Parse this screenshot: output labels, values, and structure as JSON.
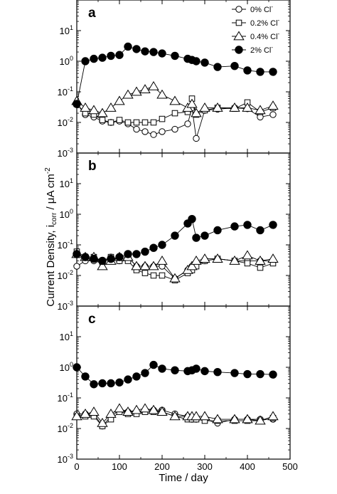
{
  "figure": {
    "ylabel_main": "Current Density, i",
    "ylabel_sub": "corr",
    "ylabel_unit": " / μA cm",
    "ylabel_exp": "-2",
    "xlabel": "Time / day"
  },
  "chart_data": {
    "type": "line",
    "x_range": [
      0,
      500
    ],
    "x_ticks": [
      0,
      100,
      200,
      300,
      400,
      500
    ],
    "y_scale": "log",
    "y_range": [
      0.001,
      100
    ],
    "y_tick_labels": [
      {
        "base": "10",
        "exp": "1"
      },
      {
        "base": "10",
        "exp": "0"
      },
      {
        "base": "10",
        "exp": "-1"
      },
      {
        "base": "10",
        "exp": "-2"
      },
      {
        "base": "10",
        "exp": "-3"
      }
    ],
    "legend": {
      "placement": "top-right",
      "entries": [
        {
          "series": 0,
          "text": "0% Cl",
          "sup": "-"
        },
        {
          "series": 1,
          "text": "0.2% Cl",
          "sup": "-"
        },
        {
          "series": 2,
          "text": "0.4% Cl",
          "sup": "-"
        },
        {
          "series": 3,
          "text": "2% Cl",
          "sup": "-"
        }
      ]
    },
    "series_styles": [
      {
        "marker": "circle",
        "fill": "#ffffff",
        "size": "small"
      },
      {
        "marker": "square",
        "fill": "#ffffff",
        "size": "small"
      },
      {
        "marker": "triangle",
        "fill": "#ffffff",
        "size": "large"
      },
      {
        "marker": "circle",
        "fill": "#000000",
        "size": "large"
      }
    ],
    "panels": [
      {
        "label": "a",
        "series": [
          {
            "x": [
              0,
              20,
              40,
              60,
              80,
              100,
              120,
              140,
              160,
              180,
              200,
              230,
              260,
              270,
              280,
              300,
              330,
              370,
              400,
              430,
              460
            ],
            "y": [
              0.04,
              0.018,
              0.015,
              0.011,
              0.01,
              0.011,
              0.009,
              0.006,
              0.005,
              0.004,
              0.005,
              0.006,
              0.009,
              0.03,
              0.003,
              0.025,
              0.027,
              0.03,
              0.028,
              0.015,
              0.018
            ]
          },
          {
            "x": [
              0,
              20,
              40,
              60,
              80,
              100,
              120,
              140,
              160,
              180,
              200,
              230,
              260,
              270,
              280,
              300,
              330,
              370,
              400,
              430,
              460
            ],
            "y": [
              0.04,
              0.02,
              0.018,
              0.012,
              0.01,
              0.012,
              0.01,
              0.01,
              0.01,
              0.01,
              0.013,
              0.02,
              0.022,
              0.06,
              0.018,
              0.025,
              0.03,
              0.028,
              0.045,
              0.022,
              0.03
            ]
          },
          {
            "x": [
              0,
              20,
              40,
              60,
              80,
              100,
              120,
              140,
              160,
              180,
              200,
              230,
              260,
              270,
              280,
              300,
              330,
              370,
              400,
              430,
              460
            ],
            "y": [
              0.05,
              0.03,
              0.025,
              0.02,
              0.03,
              0.05,
              0.08,
              0.1,
              0.12,
              0.15,
              0.08,
              0.05,
              0.03,
              0.04,
              0.02,
              0.03,
              0.03,
              0.03,
              0.03,
              0.025,
              0.035
            ]
          },
          {
            "x": [
              0,
              20,
              40,
              60,
              80,
              100,
              120,
              140,
              160,
              180,
              200,
              230,
              260,
              270,
              280,
              300,
              330,
              370,
              400,
              430,
              460
            ],
            "y": [
              0.04,
              1.0,
              1.2,
              1.3,
              1.5,
              1.6,
              3.0,
              2.5,
              2.1,
              2.0,
              1.8,
              1.5,
              1.2,
              1.1,
              1.0,
              0.9,
              0.65,
              0.7,
              0.5,
              0.45,
              0.45
            ]
          }
        ]
      },
      {
        "label": "b",
        "series": [
          {
            "x": [
              0,
              20,
              40,
              60,
              80,
              100,
              120,
              140,
              160,
              180,
              200,
              230,
              260,
              270,
              280,
              300,
              330,
              370,
              400,
              430,
              460
            ],
            "y": [
              0.02,
              0.03,
              0.03,
              0.025,
              0.04,
              0.03,
              0.04,
              0.02,
              0.02,
              0.02,
              0.02,
              0.008,
              0.015,
              0.02,
              0.025,
              0.03,
              0.035,
              0.03,
              0.03,
              0.03,
              0.03
            ]
          },
          {
            "x": [
              0,
              20,
              40,
              60,
              80,
              100,
              120,
              140,
              160,
              180,
              200,
              230,
              260,
              270,
              280,
              300,
              330,
              370,
              400,
              430,
              460
            ],
            "y": [
              0.06,
              0.04,
              0.04,
              0.03,
              0.04,
              0.03,
              0.03,
              0.015,
              0.012,
              0.01,
              0.01,
              0.007,
              0.012,
              0.015,
              0.02,
              0.03,
              0.035,
              0.03,
              0.025,
              0.018,
              0.025
            ]
          },
          {
            "x": [
              0,
              20,
              40,
              60,
              80,
              100,
              120,
              140,
              160,
              180,
              200,
              230,
              260,
              270,
              280,
              300,
              330,
              370,
              400,
              430,
              460
            ],
            "y": [
              0.05,
              0.04,
              0.04,
              0.02,
              0.03,
              0.04,
              0.04,
              0.02,
              0.02,
              0.02,
              0.03,
              0.008,
              0.015,
              0.02,
              0.03,
              0.035,
              0.035,
              0.03,
              0.045,
              0.03,
              0.035
            ]
          },
          {
            "x": [
              0,
              20,
              40,
              60,
              80,
              100,
              120,
              140,
              160,
              180,
              200,
              230,
              260,
              270,
              280,
              300,
              330,
              370,
              400,
              430,
              460
            ],
            "y": [
              0.05,
              0.04,
              0.035,
              0.03,
              0.035,
              0.04,
              0.05,
              0.05,
              0.06,
              0.08,
              0.1,
              0.2,
              0.5,
              0.7,
              0.17,
              0.2,
              0.3,
              0.4,
              0.45,
              0.3,
              0.45
            ]
          }
        ]
      },
      {
        "label": "c",
        "series": [
          {
            "x": [
              0,
              20,
              40,
              60,
              80,
              100,
              120,
              140,
              160,
              180,
              200,
              230,
              260,
              270,
              280,
              300,
              330,
              370,
              400,
              430,
              460
            ],
            "y": [
              0.03,
              0.03,
              0.03,
              0.012,
              0.025,
              0.04,
              0.035,
              0.035,
              0.04,
              0.04,
              0.04,
              0.03,
              0.025,
              0.02,
              0.02,
              0.02,
              0.015,
              0.02,
              0.02,
              0.02,
              0.02
            ]
          },
          {
            "x": [
              0,
              20,
              40,
              60,
              80,
              100,
              120,
              140,
              160,
              180,
              200,
              230,
              260,
              270,
              280,
              300,
              330,
              370,
              400,
              430,
              460
            ],
            "y": [
              0.025,
              0.025,
              0.025,
              0.012,
              0.02,
              0.035,
              0.03,
              0.03,
              0.035,
              0.035,
              0.035,
              0.025,
              0.02,
              0.02,
              0.02,
              0.018,
              0.018,
              0.018,
              0.018,
              0.018,
              0.022
            ]
          },
          {
            "x": [
              0,
              20,
              40,
              60,
              80,
              100,
              120,
              140,
              160,
              180,
              200,
              230,
              260,
              270,
              280,
              300,
              330,
              370,
              400,
              430,
              460
            ],
            "y": [
              0.025,
              0.03,
              0.035,
              0.015,
              0.03,
              0.045,
              0.035,
              0.04,
              0.045,
              0.04,
              0.035,
              0.025,
              0.025,
              0.025,
              0.025,
              0.025,
              0.02,
              0.02,
              0.02,
              0.018,
              0.025
            ]
          },
          {
            "x": [
              0,
              20,
              40,
              60,
              80,
              100,
              120,
              140,
              160,
              180,
              200,
              230,
              260,
              270,
              280,
              300,
              330,
              370,
              400,
              430,
              460
            ],
            "y": [
              1.0,
              0.5,
              0.28,
              0.3,
              0.3,
              0.32,
              0.4,
              0.5,
              0.65,
              1.2,
              0.9,
              0.8,
              0.75,
              0.8,
              0.9,
              0.75,
              0.7,
              0.65,
              0.6,
              0.6,
              0.58
            ]
          }
        ]
      }
    ]
  }
}
